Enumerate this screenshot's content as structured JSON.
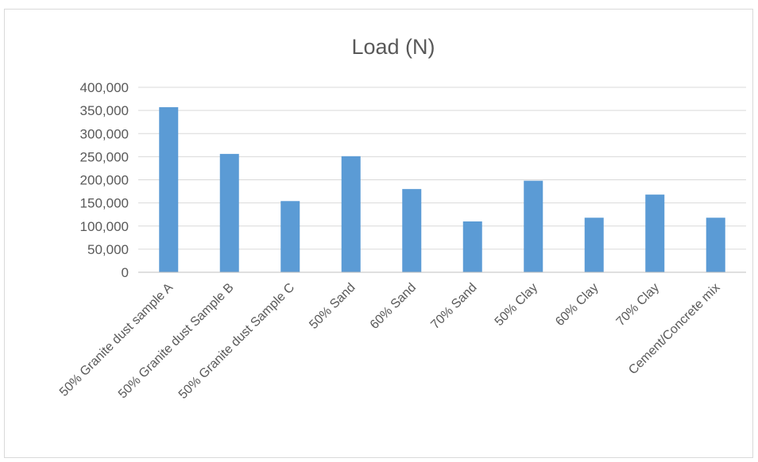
{
  "chart_data": {
    "type": "bar",
    "title": "Load (N)",
    "xlabel": "",
    "ylabel": "",
    "categories": [
      "50% Granite dust sample A",
      "50% Granite dust Sample B",
      "50% Granite dust Sample C",
      "50% Sand",
      "60% Sand",
      "70% Sand",
      "50% Clay",
      "60% Clay",
      "70% Clay",
      "Cement/Concrete mix"
    ],
    "values": [
      357000,
      256000,
      154000,
      251000,
      180000,
      110000,
      198000,
      118000,
      168000,
      118000
    ],
    "ylim": [
      0,
      400000
    ],
    "yticks": [
      0,
      50000,
      100000,
      150000,
      200000,
      250000,
      300000,
      350000,
      400000
    ],
    "ytick_labels": [
      "0",
      "50,000",
      "100,000",
      "150,000",
      "200,000",
      "250,000",
      "300,000",
      "350,000",
      "400,000"
    ],
    "grid": true,
    "legend": "none",
    "bar_color": "#5b9bd5"
  }
}
